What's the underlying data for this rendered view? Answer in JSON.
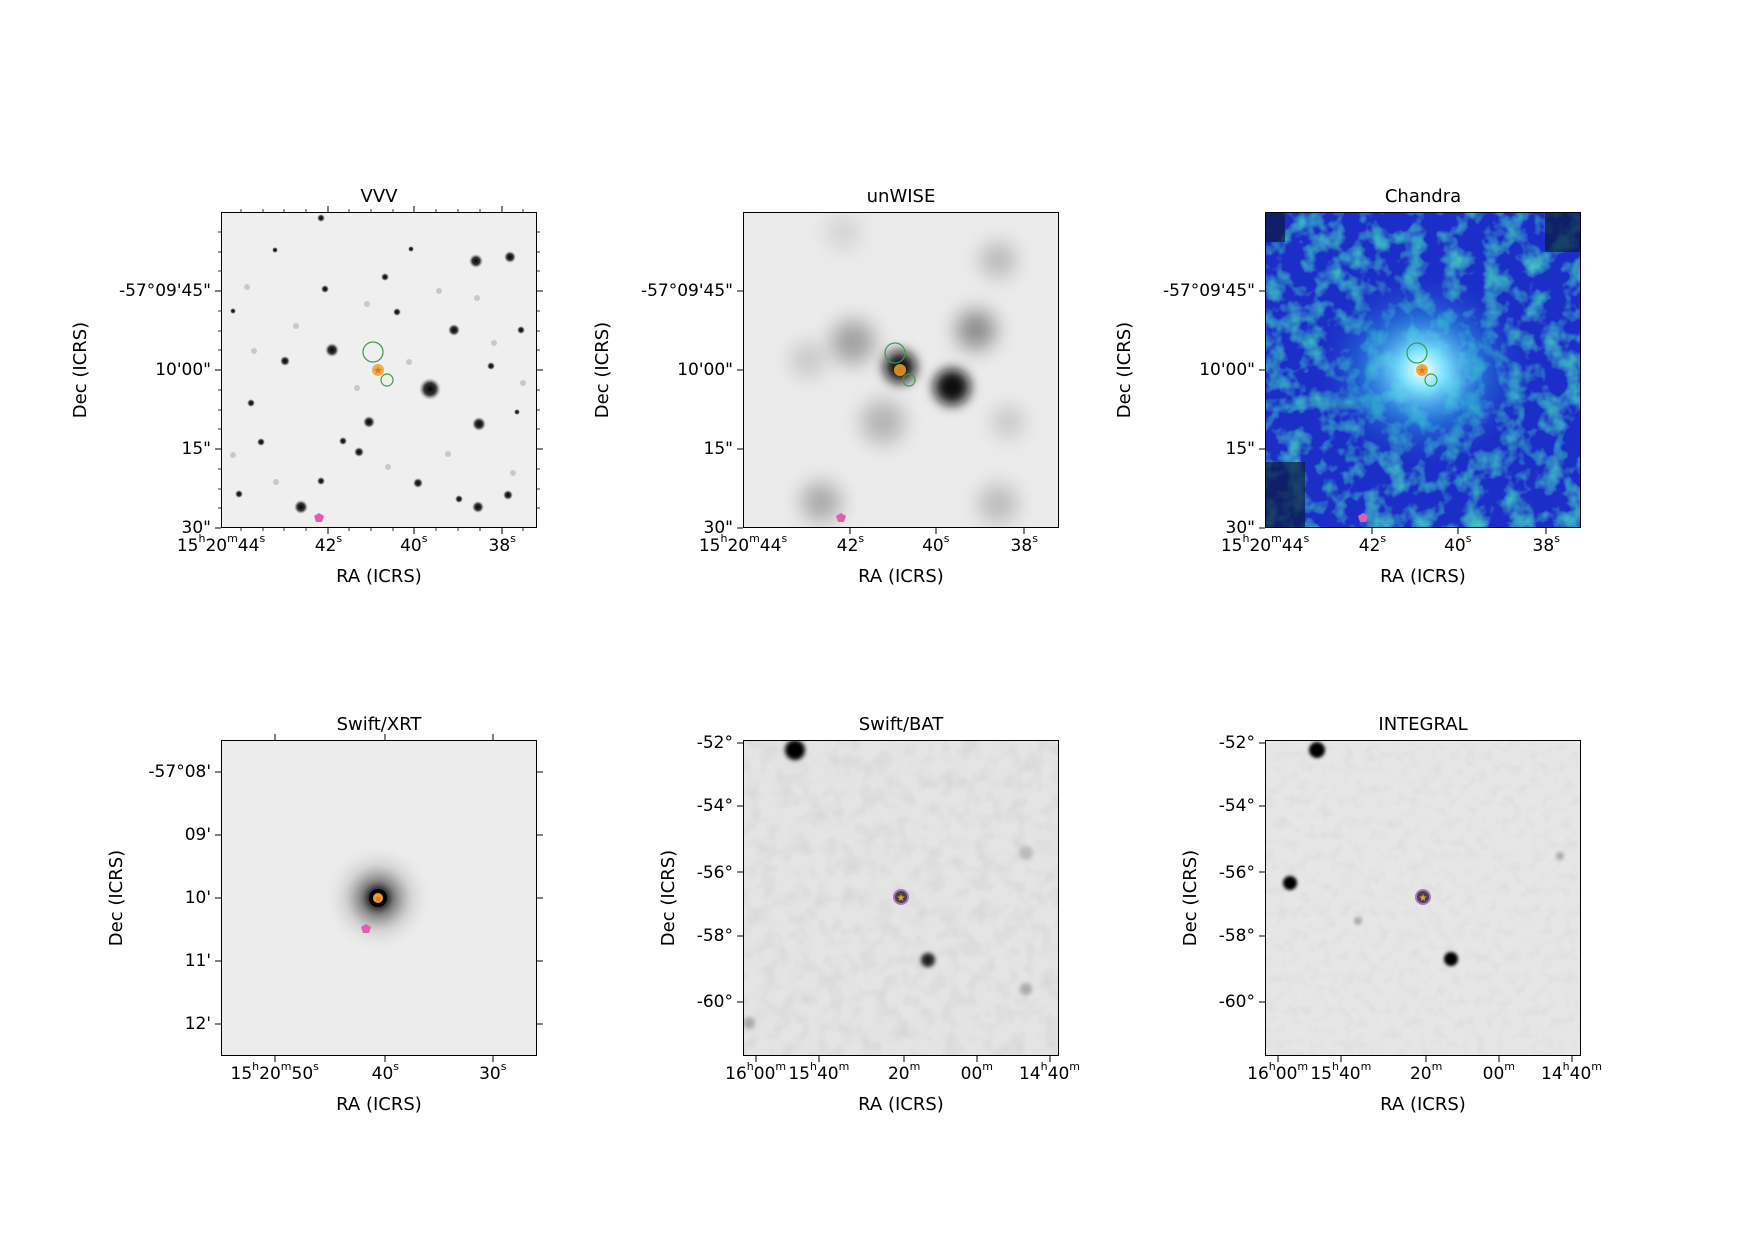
{
  "panels": [
    {
      "id": "vvv",
      "title": "VVV",
      "xlabel": "RA (ICRS)",
      "ylabel": "Dec (ICRS)",
      "background": "#efefef",
      "yticks": [
        {
          "label": "-57°09'45\"",
          "frac": 0.25
        },
        {
          "label": "10'00\"",
          "frac": 0.5
        },
        {
          "label": "15\"",
          "frac": 0.75
        },
        {
          "label": "30\"",
          "frac": 1.0
        }
      ],
      "xticks": [
        {
          "h": "15",
          "m": "20",
          "s": "44",
          "frac": 0.0
        },
        {
          "s": "42",
          "frac": 0.34
        },
        {
          "s": "40",
          "frac": 0.61
        },
        {
          "s": "38",
          "frac": 0.89
        }
      ]
    },
    {
      "id": "unwise",
      "title": "unWISE",
      "xlabel": "RA (ICRS)",
      "ylabel": "Dec (ICRS)",
      "background": "#ebebeb",
      "yticks": [
        {
          "label": "-57°09'45\"",
          "frac": 0.25
        },
        {
          "label": "10'00\"",
          "frac": 0.5
        },
        {
          "label": "15\"",
          "frac": 0.75
        },
        {
          "label": "30\"",
          "frac": 1.0
        }
      ],
      "xticks": [
        {
          "h": "15",
          "m": "20",
          "s": "44",
          "frac": 0.0
        },
        {
          "s": "42",
          "frac": 0.34
        },
        {
          "s": "40",
          "frac": 0.61
        },
        {
          "s": "38",
          "frac": 0.89
        }
      ]
    },
    {
      "id": "chandra",
      "title": "Chandra",
      "xlabel": "RA (ICRS)",
      "ylabel": "Dec (ICRS)",
      "background": "#1f2fc8",
      "yticks": [
        {
          "label": "-57°09'45\"",
          "frac": 0.25
        },
        {
          "label": "10'00\"",
          "frac": 0.5
        },
        {
          "label": "15\"",
          "frac": 0.75
        },
        {
          "label": "30\"",
          "frac": 1.0
        }
      ],
      "xticks": [
        {
          "h": "15",
          "m": "20",
          "s": "44",
          "frac": 0.0
        },
        {
          "s": "42",
          "frac": 0.34
        },
        {
          "s": "40",
          "frac": 0.61
        },
        {
          "s": "38",
          "frac": 0.89
        }
      ]
    },
    {
      "id": "swift-xrt",
      "title": "Swift/XRT",
      "xlabel": "RA (ICRS)",
      "ylabel": "Dec (ICRS)",
      "background": "#ececec",
      "yticks": [
        {
          "label": "-57°08'",
          "frac": 0.1
        },
        {
          "label": "09'",
          "frac": 0.3
        },
        {
          "label": "10'",
          "frac": 0.5
        },
        {
          "label": "11'",
          "frac": 0.7
        },
        {
          "label": "12'",
          "frac": 0.9
        }
      ],
      "xticks": [
        {
          "h": "15",
          "m": "20",
          "s": "50",
          "frac": 0.17
        },
        {
          "s": "40",
          "frac": 0.52
        },
        {
          "s": "30",
          "frac": 0.86
        }
      ]
    },
    {
      "id": "swift-bat",
      "title": "Swift/BAT",
      "xlabel": "RA (ICRS)",
      "ylabel": "Dec (ICRS)",
      "background": "#e4e4e4",
      "yticks": [
        {
          "label": "-52°",
          "frac": 0.01
        },
        {
          "label": "-54°",
          "frac": 0.21
        },
        {
          "label": "-56°",
          "frac": 0.42
        },
        {
          "label": "-58°",
          "frac": 0.62
        },
        {
          "label": "-60°",
          "frac": 0.83
        }
      ],
      "xticks": [
        {
          "h": "16",
          "m": "00",
          "frac": 0.04
        },
        {
          "h": "15",
          "m": "40",
          "frac": 0.24
        },
        {
          "m": "20",
          "frac": 0.51
        },
        {
          "m": "00",
          "frac": 0.74
        },
        {
          "h": "14",
          "m": "40",
          "frac": 0.97
        }
      ]
    },
    {
      "id": "integral",
      "title": "INTEGRAL",
      "xlabel": "RA (ICRS)",
      "ylabel": "Dec (ICRS)",
      "background": "#e6e6e6",
      "yticks": [
        {
          "label": "-52°",
          "frac": 0.01
        },
        {
          "label": "-54°",
          "frac": 0.21
        },
        {
          "label": "-56°",
          "frac": 0.42
        },
        {
          "label": "-58°",
          "frac": 0.62
        },
        {
          "label": "-60°",
          "frac": 0.83
        }
      ],
      "xticks": [
        {
          "h": "16",
          "m": "00",
          "frac": 0.04
        },
        {
          "h": "15",
          "m": "40",
          "frac": 0.24
        },
        {
          "m": "20",
          "frac": 0.51
        },
        {
          "m": "00",
          "frac": 0.74
        },
        {
          "h": "14",
          "m": "40",
          "frac": 0.97
        }
      ]
    }
  ],
  "colors": {
    "star_marker": "#f0a030",
    "pentagon_marker": "#e060b0",
    "circle_marker": "#3a9a4a",
    "bat_circle": "#b070c0"
  }
}
